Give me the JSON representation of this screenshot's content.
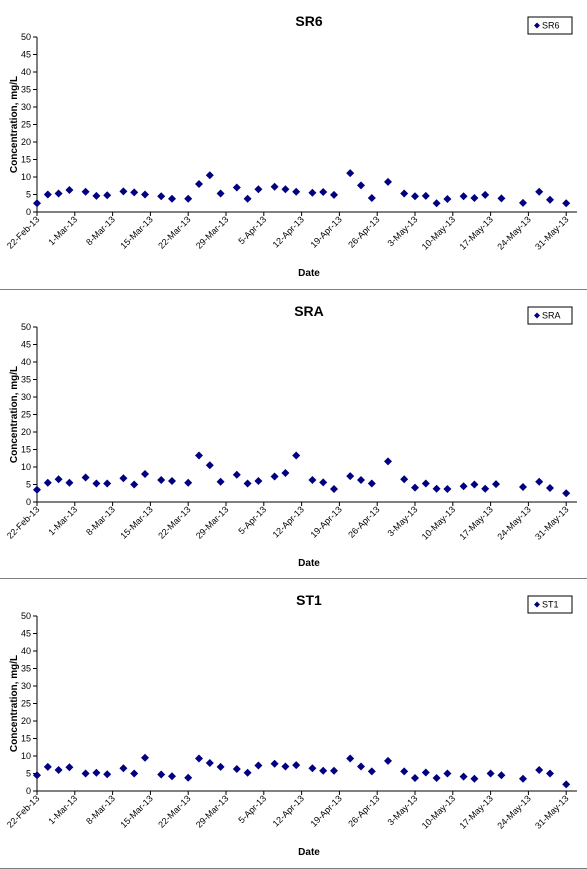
{
  "chart_data": [
    {
      "type": "scatter",
      "title": "SR6",
      "xlabel": "Date",
      "ylabel": "Concentration, mg/L",
      "ylim": [
        0,
        50
      ],
      "yticks": [
        0,
        5,
        10,
        15,
        20,
        25,
        30,
        35,
        40,
        45,
        50
      ],
      "xlim": [
        "2013-02-22",
        "2013-06-02"
      ],
      "xtick_labels": [
        "22-Feb-13",
        "1-Mar-13",
        "8-Mar-13",
        "15-Mar-13",
        "22-Mar-13",
        "29-Mar-13",
        "5-Apr-13",
        "12-Apr-13",
        "19-Apr-13",
        "26-Apr-13",
        "3-May-13",
        "10-May-13",
        "17-May-13",
        "24-May-13",
        "31-May-13"
      ],
      "grid": false,
      "legend": "top-right",
      "marker_color": "#000080",
      "series": [
        {
          "name": "SR6",
          "points": [
            [
              "2013-02-22",
              2.5
            ],
            [
              "2013-02-24",
              5.0
            ],
            [
              "2013-02-26",
              5.3
            ],
            [
              "2013-02-28",
              6.3
            ],
            [
              "2013-03-03",
              5.8
            ],
            [
              "2013-03-05",
              4.6
            ],
            [
              "2013-03-07",
              4.8
            ],
            [
              "2013-03-10",
              5.9
            ],
            [
              "2013-03-12",
              5.6
            ],
            [
              "2013-03-14",
              5.0
            ],
            [
              "2013-03-17",
              4.5
            ],
            [
              "2013-03-19",
              3.8
            ],
            [
              "2013-03-22",
              3.8
            ],
            [
              "2013-03-24",
              8.0
            ],
            [
              "2013-03-26",
              10.5
            ],
            [
              "2013-03-28",
              5.3
            ],
            [
              "2013-03-31",
              7.0
            ],
            [
              "2013-04-02",
              3.8
            ],
            [
              "2013-04-04",
              6.5
            ],
            [
              "2013-04-07",
              7.2
            ],
            [
              "2013-04-09",
              6.5
            ],
            [
              "2013-04-11",
              5.8
            ],
            [
              "2013-04-14",
              5.5
            ],
            [
              "2013-04-16",
              5.7
            ],
            [
              "2013-04-18",
              4.9
            ],
            [
              "2013-04-21",
              11.1
            ],
            [
              "2013-04-23",
              7.6
            ],
            [
              "2013-04-25",
              4.0
            ],
            [
              "2013-04-28",
              8.6
            ],
            [
              "2013-05-01",
              5.3
            ],
            [
              "2013-05-03",
              4.5
            ],
            [
              "2013-05-05",
              4.6
            ],
            [
              "2013-05-07",
              2.5
            ],
            [
              "2013-05-09",
              3.7
            ],
            [
              "2013-05-12",
              4.5
            ],
            [
              "2013-05-14",
              4.0
            ],
            [
              "2013-05-16",
              4.9
            ],
            [
              "2013-05-19",
              3.9
            ],
            [
              "2013-05-23",
              2.6
            ],
            [
              "2013-05-26",
              5.8
            ],
            [
              "2013-05-28",
              3.5
            ],
            [
              "2013-05-31",
              2.5
            ]
          ]
        }
      ]
    },
    {
      "type": "scatter",
      "title": "SRA",
      "xlabel": "Date",
      "ylabel": "Concentration, mg/L",
      "ylim": [
        0,
        50
      ],
      "yticks": [
        0,
        5,
        10,
        15,
        20,
        25,
        30,
        35,
        40,
        45,
        50
      ],
      "xlim": [
        "2013-02-22",
        "2013-06-02"
      ],
      "xtick_labels": [
        "22-Feb-13",
        "1-Mar-13",
        "8-Mar-13",
        "15-Mar-13",
        "22-Mar-13",
        "29-Mar-13",
        "5-Apr-13",
        "12-Apr-13",
        "19-Apr-13",
        "26-Apr-13",
        "3-May-13",
        "10-May-13",
        "17-May-13",
        "24-May-13",
        "31-May-13"
      ],
      "grid": false,
      "legend": "top-right",
      "marker_color": "#000080",
      "series": [
        {
          "name": "SRA",
          "points": [
            [
              "2013-02-22",
              3.5
            ],
            [
              "2013-02-24",
              5.5
            ],
            [
              "2013-02-26",
              6.5
            ],
            [
              "2013-02-28",
              5.5
            ],
            [
              "2013-03-03",
              7.0
            ],
            [
              "2013-03-05",
              5.3
            ],
            [
              "2013-03-07",
              5.3
            ],
            [
              "2013-03-10",
              6.8
            ],
            [
              "2013-03-12",
              5.0
            ],
            [
              "2013-03-14",
              8.0
            ],
            [
              "2013-03-17",
              6.3
            ],
            [
              "2013-03-19",
              6.0
            ],
            [
              "2013-03-22",
              5.5
            ],
            [
              "2013-03-24",
              13.3
            ],
            [
              "2013-03-26",
              10.5
            ],
            [
              "2013-03-28",
              5.8
            ],
            [
              "2013-03-31",
              7.8
            ],
            [
              "2013-04-02",
              5.3
            ],
            [
              "2013-04-04",
              6.0
            ],
            [
              "2013-04-07",
              7.3
            ],
            [
              "2013-04-09",
              8.3
            ],
            [
              "2013-04-11",
              13.3
            ],
            [
              "2013-04-14",
              6.3
            ],
            [
              "2013-04-16",
              5.6
            ],
            [
              "2013-04-18",
              3.7
            ],
            [
              "2013-04-21",
              7.4
            ],
            [
              "2013-04-23",
              6.3
            ],
            [
              "2013-04-25",
              5.3
            ],
            [
              "2013-04-28",
              11.6
            ],
            [
              "2013-05-01",
              6.5
            ],
            [
              "2013-05-03",
              4.1
            ],
            [
              "2013-05-05",
              5.3
            ],
            [
              "2013-05-07",
              3.8
            ],
            [
              "2013-05-09",
              3.7
            ],
            [
              "2013-05-12",
              4.5
            ],
            [
              "2013-05-14",
              5.0
            ],
            [
              "2013-05-16",
              3.8
            ],
            [
              "2013-05-18",
              5.1
            ],
            [
              "2013-05-23",
              4.3
            ],
            [
              "2013-05-26",
              5.8
            ],
            [
              "2013-05-28",
              4.0
            ],
            [
              "2013-05-31",
              2.5
            ]
          ]
        }
      ]
    },
    {
      "type": "scatter",
      "title": "ST1",
      "xlabel": "Date",
      "ylabel": "Concentration, mg/L",
      "ylim": [
        0,
        50
      ],
      "yticks": [
        0,
        5,
        10,
        15,
        20,
        25,
        30,
        35,
        40,
        45,
        50
      ],
      "xlim": [
        "2013-02-22",
        "2013-06-02"
      ],
      "xtick_labels": [
        "22-Feb-13",
        "1-Mar-13",
        "8-Mar-13",
        "15-Mar-13",
        "22-Mar-13",
        "29-Mar-13",
        "5-Apr-13",
        "12-Apr-13",
        "19-Apr-13",
        "26-Apr-13",
        "3-May-13",
        "10-May-13",
        "17-May-13",
        "24-May-13",
        "31-May-13"
      ],
      "grid": false,
      "legend": "top-right",
      "marker_color": "#000080",
      "series": [
        {
          "name": "ST1",
          "points": [
            [
              "2013-02-22",
              4.5
            ],
            [
              "2013-02-24",
              6.9
            ],
            [
              "2013-02-26",
              6.0
            ],
            [
              "2013-02-28",
              6.8
            ],
            [
              "2013-03-03",
              5.0
            ],
            [
              "2013-03-05",
              5.2
            ],
            [
              "2013-03-07",
              4.8
            ],
            [
              "2013-03-10",
              6.5
            ],
            [
              "2013-03-12",
              5.0
            ],
            [
              "2013-03-14",
              9.5
            ],
            [
              "2013-03-17",
              4.7
            ],
            [
              "2013-03-19",
              4.2
            ],
            [
              "2013-03-22",
              3.8
            ],
            [
              "2013-03-24",
              9.3
            ],
            [
              "2013-03-26",
              8.0
            ],
            [
              "2013-03-28",
              6.9
            ],
            [
              "2013-03-31",
              6.3
            ],
            [
              "2013-04-02",
              5.2
            ],
            [
              "2013-04-04",
              7.3
            ],
            [
              "2013-04-07",
              7.8
            ],
            [
              "2013-04-09",
              7.0
            ],
            [
              "2013-04-11",
              7.4
            ],
            [
              "2013-04-14",
              6.5
            ],
            [
              "2013-04-16",
              5.8
            ],
            [
              "2013-04-18",
              5.8
            ],
            [
              "2013-04-21",
              9.3
            ],
            [
              "2013-04-23",
              7.0
            ],
            [
              "2013-04-25",
              5.6
            ],
            [
              "2013-04-28",
              8.6
            ],
            [
              "2013-05-01",
              5.6
            ],
            [
              "2013-05-03",
              3.7
            ],
            [
              "2013-05-05",
              5.3
            ],
            [
              "2013-05-07",
              3.7
            ],
            [
              "2013-05-09",
              5.0
            ],
            [
              "2013-05-12",
              4.1
            ],
            [
              "2013-05-14",
              3.5
            ],
            [
              "2013-05-17",
              5.0
            ],
            [
              "2013-05-19",
              4.5
            ],
            [
              "2013-05-23",
              3.5
            ],
            [
              "2013-05-26",
              6.0
            ],
            [
              "2013-05-28",
              5.0
            ],
            [
              "2013-05-31",
              1.9
            ]
          ]
        }
      ]
    }
  ]
}
